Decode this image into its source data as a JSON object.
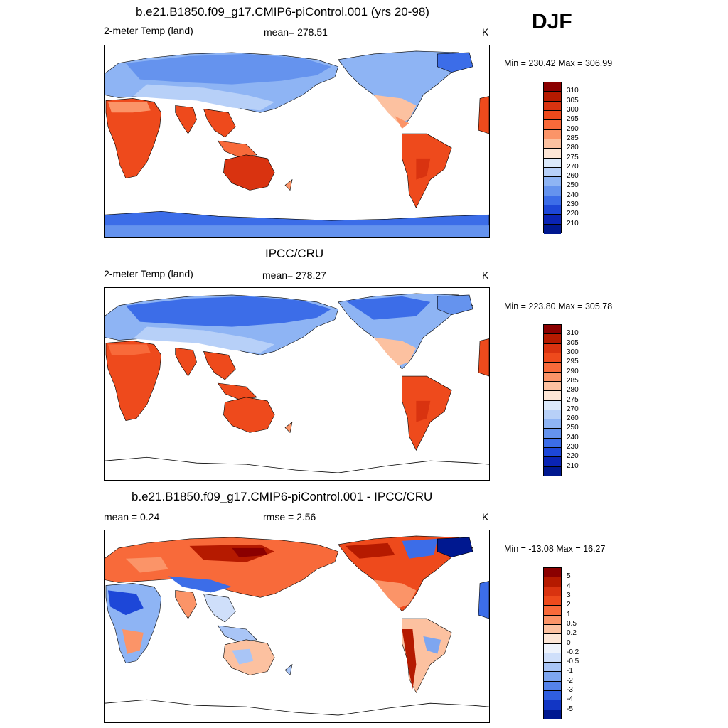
{
  "season": "DJF",
  "units": "K",
  "panels": [
    {
      "title": "b.e21.B1850.f09_g17.CMIP6-piControl.001 (yrs 20-98)",
      "left_label": "2-meter Temp (land)",
      "center_label": "mean= 278.51",
      "minmax": "Min = 230.42 Max = 306.99",
      "kind": "abs"
    },
    {
      "title": "IPCC/CRU",
      "left_label": "2-meter Temp (land)",
      "center_label": "mean= 278.27",
      "minmax": "Min = 223.80 Max = 305.78",
      "kind": "abs"
    },
    {
      "title": "b.e21.B1850.f09_g17.CMIP6-piControl.001 - IPCC/CRU",
      "left_label": "mean =   0.24",
      "center_label": "rmse =   2.56",
      "minmax": "Min = -13.08 Max =  16.27",
      "kind": "diff"
    }
  ],
  "colorbars": {
    "abs": {
      "labels": [
        "310",
        "305",
        "300",
        "295",
        "290",
        "285",
        "280",
        "275",
        "270",
        "260",
        "250",
        "240",
        "230",
        "220",
        "210"
      ],
      "colors": [
        "#8b0000",
        "#b51a00",
        "#d93310",
        "#ee4a1c",
        "#f86a3a",
        "#fb9468",
        "#fcc1a0",
        "#fde6d6",
        "#dbe9fb",
        "#b7d0f8",
        "#8eb4f4",
        "#6593ee",
        "#3c6de8",
        "#1d47d8",
        "#0a24b4",
        "#001890"
      ]
    },
    "diff": {
      "labels": [
        "5",
        "4",
        "3",
        "2",
        "1",
        "0.5",
        "0.2",
        "0",
        "-0.2",
        "-0.5",
        "-1",
        "-2",
        "-3",
        "-4",
        "-5"
      ],
      "colors": [
        "#8b0000",
        "#b51a00",
        "#d93310",
        "#ee4a1c",
        "#f86a3a",
        "#fb9468",
        "#fcc1a0",
        "#fde6d6",
        "#eef3fc",
        "#cfdffa",
        "#a9c5f6",
        "#7ea6f0",
        "#5583ea",
        "#2f5ee0",
        "#1236c4",
        "#001890"
      ]
    }
  }
}
